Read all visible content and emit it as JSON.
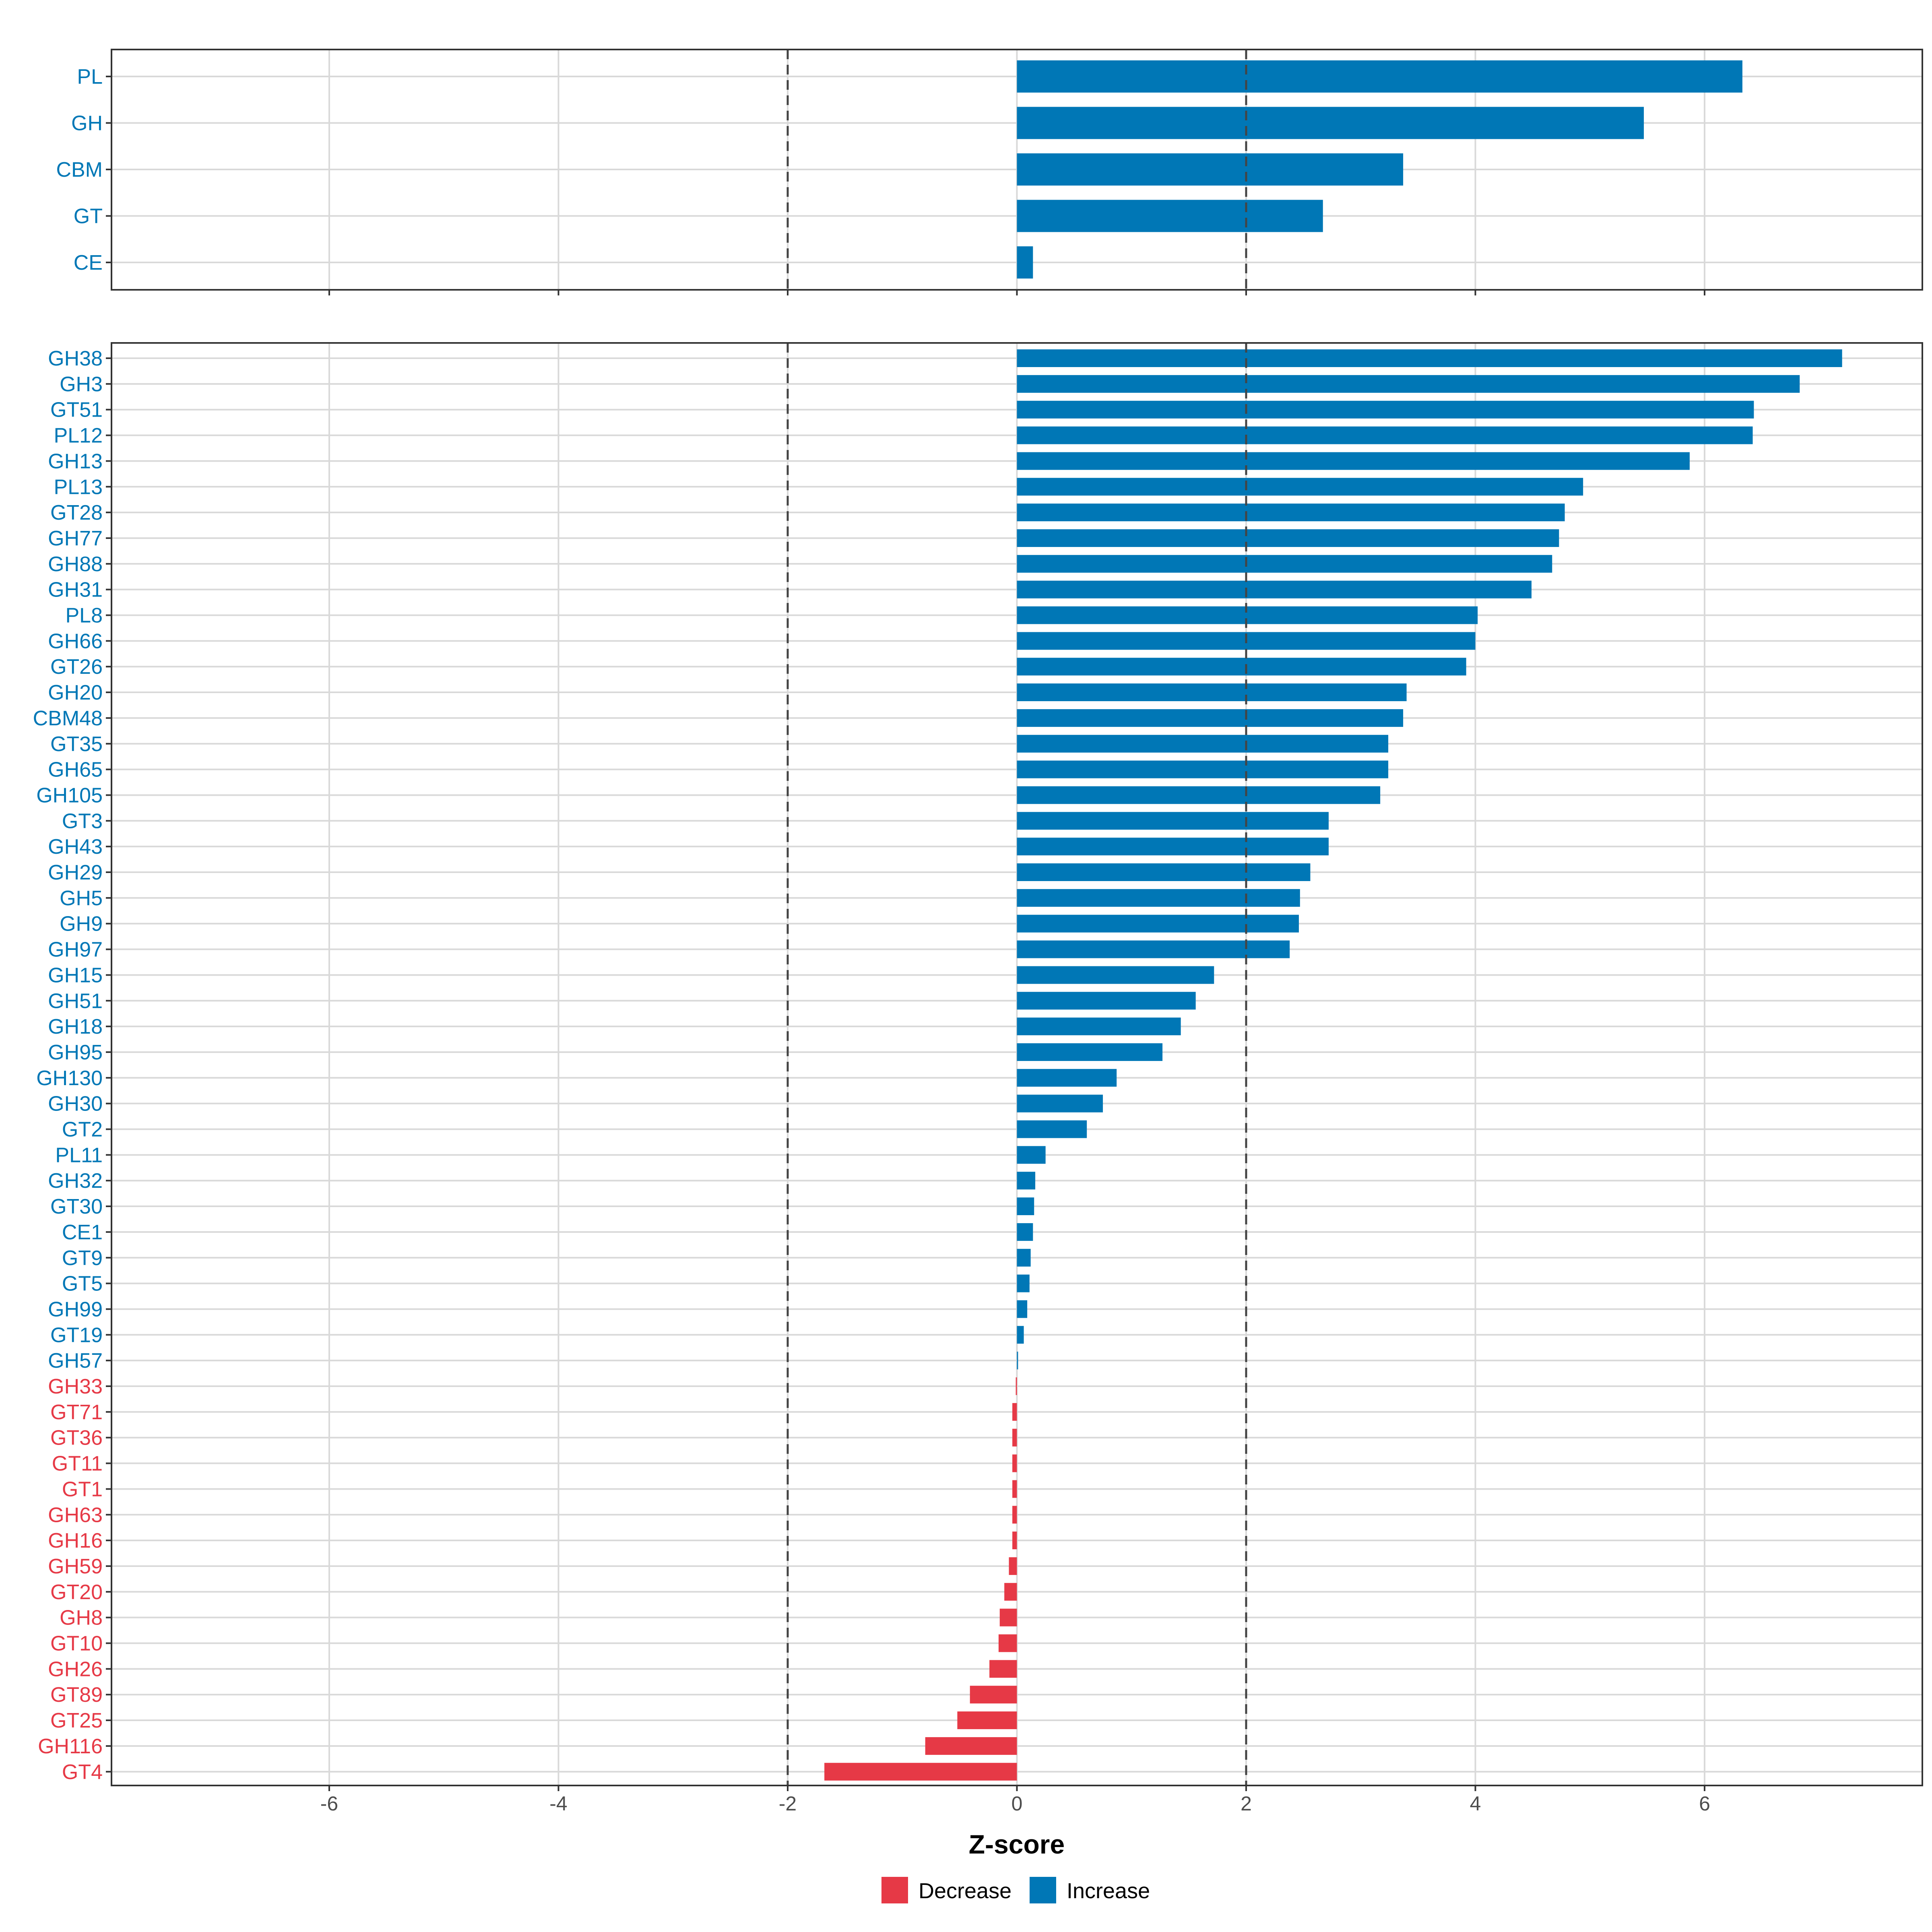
{
  "chart_data": [
    {
      "type": "bar",
      "orientation": "horizontal",
      "panel": "top",
      "categories": [
        "PL",
        "GH",
        "CBM",
        "GT",
        "CE"
      ],
      "values": [
        6.33,
        5.47,
        3.37,
        2.67,
        0.14
      ],
      "reference_lines": [
        -2,
        2
      ],
      "xlim": [
        -7.9,
        7.9
      ],
      "grid": true
    },
    {
      "type": "bar",
      "orientation": "horizontal",
      "panel": "bottom",
      "categories": [
        "GH38",
        "GH3",
        "GT51",
        "PL12",
        "GH13",
        "PL13",
        "GT28",
        "GH77",
        "GH88",
        "GH31",
        "PL8",
        "GH66",
        "GT26",
        "GH20",
        "CBM48",
        "GT35",
        "GH65",
        "GH105",
        "GT3",
        "GH43",
        "GH29",
        "GH5",
        "GH9",
        "GH97",
        "GH15",
        "GH51",
        "GH18",
        "GH95",
        "GH130",
        "GH30",
        "GT2",
        "PL11",
        "GH32",
        "GT30",
        "CE1",
        "GT9",
        "GT5",
        "GH99",
        "GT19",
        "GH57",
        "GH33",
        "GT71",
        "GT36",
        "GT11",
        "GT1",
        "GH63",
        "GH16",
        "GH59",
        "GT20",
        "GH8",
        "GT10",
        "GH26",
        "GT89",
        "GT25",
        "GH116",
        "GT4"
      ],
      "values": [
        7.2,
        6.83,
        6.43,
        6.42,
        5.87,
        4.94,
        4.78,
        4.73,
        4.67,
        4.49,
        4.02,
        4.0,
        3.92,
        3.4,
        3.37,
        3.24,
        3.24,
        3.17,
        2.72,
        2.72,
        2.56,
        2.47,
        2.46,
        2.38,
        1.72,
        1.56,
        1.43,
        1.27,
        0.87,
        0.75,
        0.61,
        0.25,
        0.16,
        0.15,
        0.14,
        0.12,
        0.11,
        0.09,
        0.06,
        0.01,
        -0.01,
        -0.04,
        -0.04,
        -0.04,
        -0.04,
        -0.04,
        -0.04,
        -0.07,
        -0.11,
        -0.15,
        -0.16,
        -0.24,
        -0.41,
        -0.52,
        -0.8,
        -1.68
      ],
      "reference_lines": [
        -2,
        2
      ],
      "xlim": [
        -7.9,
        7.9
      ],
      "xticks": [
        -6,
        -4,
        -2,
        0,
        2,
        4,
        6
      ],
      "xtick_labels": [
        "-6",
        "-4",
        "-2",
        "0",
        "2",
        "4",
        "6"
      ],
      "xlabel": "Z-score",
      "grid": true
    }
  ],
  "legend": {
    "placement": "bottom-center",
    "items": [
      {
        "label": "Decrease",
        "color": "#E63946"
      },
      {
        "label": "Increase",
        "color": "#0077B6"
      }
    ]
  },
  "colors": {
    "increase": "#0077B6",
    "decrease": "#E63946",
    "grid": "#d9d9d9",
    "ref_line": "#444444"
  }
}
